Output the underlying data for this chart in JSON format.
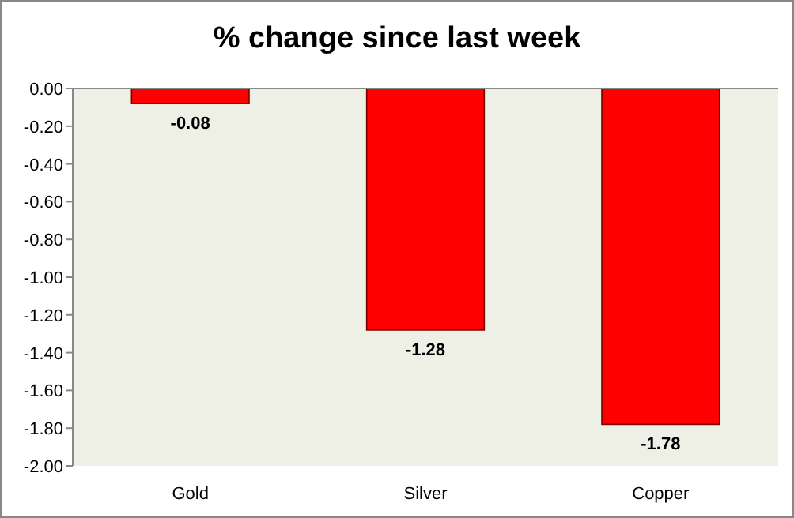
{
  "chart_data": {
    "type": "bar",
    "title": "% change since last week",
    "categories": [
      "Gold",
      "Silver",
      "Copper"
    ],
    "values": [
      -0.08,
      -1.28,
      -1.78
    ],
    "color": "#ff0000",
    "ylim": [
      -2,
      0
    ],
    "yticks": [
      {
        "value": 0,
        "label": "0.00"
      },
      {
        "value": -0.2,
        "label": "-0.20"
      },
      {
        "value": -0.4,
        "label": "-0.40"
      },
      {
        "value": -0.6,
        "label": "-0.60"
      },
      {
        "value": -0.8,
        "label": "-0.80"
      },
      {
        "value": -1,
        "label": "-1.00"
      },
      {
        "value": -1.2,
        "label": "-1.20"
      },
      {
        "value": -1.4,
        "label": "-1.40"
      },
      {
        "value": -1.6,
        "label": "-1.60"
      },
      {
        "value": -1.8,
        "label": "-1.80"
      },
      {
        "value": -2,
        "label": "-2.00"
      }
    ],
    "data_labels": true
  }
}
